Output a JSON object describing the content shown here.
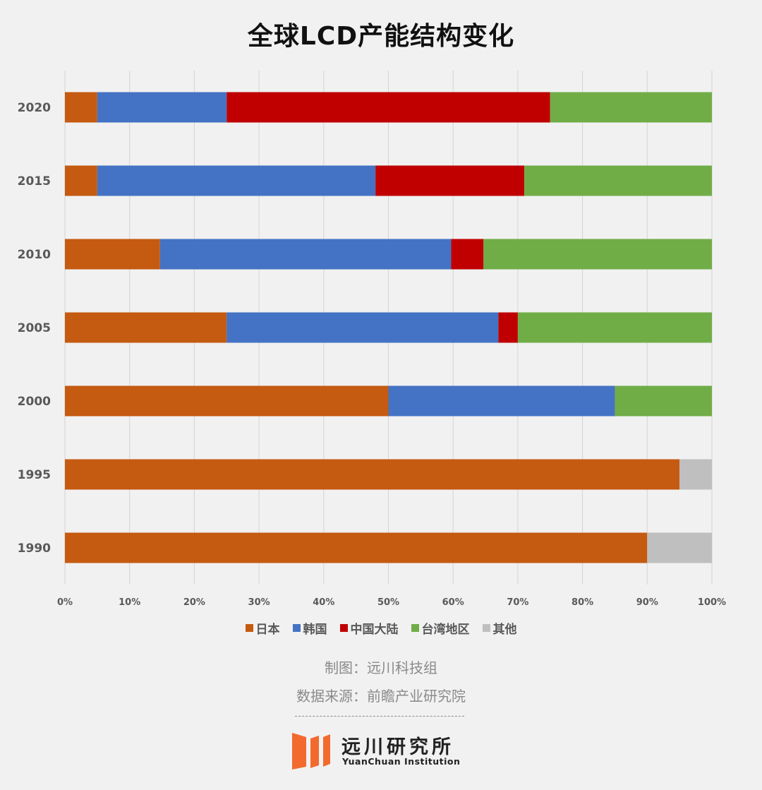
{
  "chart_data": {
    "type": "bar",
    "orientation": "horizontal",
    "stacked": "percent",
    "title": "全球LCD产能结构变化",
    "categories": [
      "2020",
      "2015",
      "2010",
      "2005",
      "2000",
      "1995",
      "1990"
    ],
    "series": [
      {
        "name": "日本",
        "color": "#c55a11",
        "values": [
          5,
          5,
          14.7,
          25,
          50,
          95,
          90
        ]
      },
      {
        "name": "韩国",
        "color": "#4472c4",
        "values": [
          20,
          43,
          45,
          42,
          35,
          0,
          0
        ]
      },
      {
        "name": "中国大陆",
        "color": "#c00000",
        "values": [
          50,
          23,
          5,
          3,
          0,
          0,
          0
        ]
      },
      {
        "name": "台湾地区",
        "color": "#70ad47",
        "values": [
          25,
          29,
          35.3,
          30,
          15,
          0,
          0
        ]
      },
      {
        "name": "其他",
        "color": "#bfbfbf",
        "values": [
          0,
          0,
          0,
          0,
          0,
          5,
          10
        ]
      }
    ],
    "x_ticks": [
      "0%",
      "10%",
      "20%",
      "30%",
      "40%",
      "50%",
      "60%",
      "70%",
      "80%",
      "90%",
      "100%"
    ],
    "xlim": [
      0,
      100
    ],
    "grid": "vertical",
    "legend_position": "bottom"
  },
  "footer": {
    "credit": "制图：远川科技组",
    "source": "数据来源：前瞻产业研究院",
    "logo_cn": "远川研究所",
    "logo_en": "YuanChuan Institution"
  }
}
